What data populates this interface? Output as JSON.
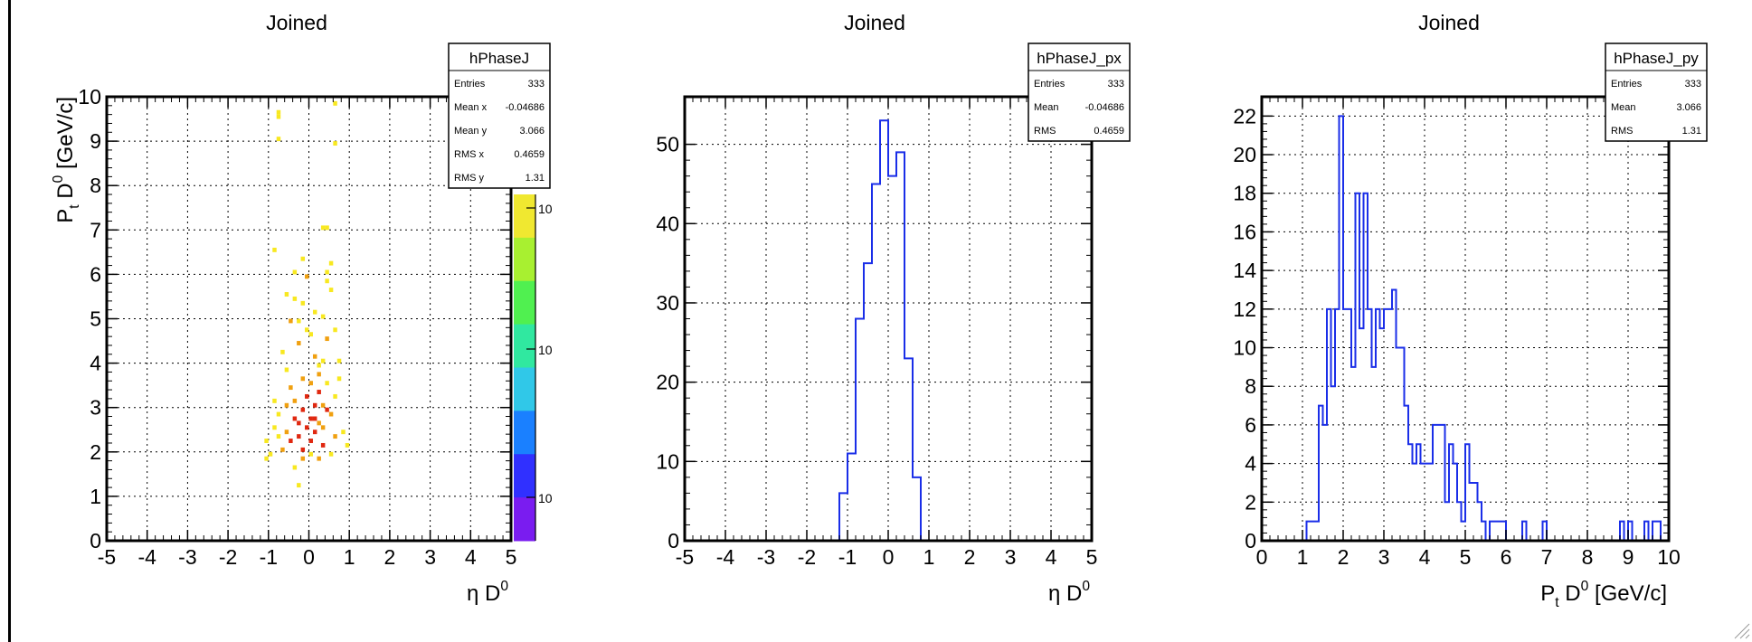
{
  "chart_data": [
    {
      "type": "heatmap",
      "title": "Joined",
      "xlabel": {
        "main": "η D",
        "sup": "0"
      },
      "ylabel": {
        "main": "P",
        "sub": "t",
        "mid": " D",
        "sup": "0",
        "rest": " [GeV/c]"
      },
      "xlim": [
        -5,
        5
      ],
      "ylim": [
        0,
        10
      ],
      "x_ticks": [
        -5,
        -4,
        -3,
        -2,
        -1,
        0,
        1,
        2,
        3,
        4,
        5
      ],
      "y_ticks": [
        0,
        1,
        2,
        3,
        4,
        5,
        6,
        7,
        8,
        9,
        10
      ],
      "grid": true,
      "colorbar_labels": [
        "10",
        "10",
        "10"
      ],
      "stats": {
        "name": "hPhaseJ",
        "rows": [
          {
            "label": "Entries",
            "value": "333"
          },
          {
            "label": "Mean x",
            "value": "-0.04686"
          },
          {
            "label": "Mean y",
            "value": "3.066"
          },
          {
            "label": "RMS x",
            "value": "0.4659"
          },
          {
            "label": "RMS y",
            "value": "1.31"
          }
        ]
      },
      "cell_width": 0.1,
      "cell_height": 0.1,
      "colors": {
        "low": "#f8e820",
        "mid": "#f0a010",
        "high": "#e02810"
      },
      "cells": [
        [
          -1.1,
          1.8,
          "low"
        ],
        [
          -1.0,
          1.9,
          "low"
        ],
        [
          -1.1,
          2.2,
          "low"
        ],
        [
          -0.9,
          2.5,
          "low"
        ],
        [
          -0.8,
          2.8,
          "low"
        ],
        [
          -0.9,
          3.1,
          "low"
        ],
        [
          -0.7,
          2.0,
          "mid"
        ],
        [
          -0.6,
          2.4,
          "mid"
        ],
        [
          -0.5,
          3.4,
          "mid"
        ],
        [
          -0.6,
          3.8,
          "low"
        ],
        [
          -0.7,
          4.2,
          "low"
        ],
        [
          -0.5,
          4.9,
          "mid"
        ],
        [
          -0.6,
          5.5,
          "low"
        ],
        [
          -0.4,
          6.0,
          "low"
        ],
        [
          -0.9,
          6.5,
          "low"
        ],
        [
          -0.4,
          1.6,
          "low"
        ],
        [
          -0.3,
          1.2,
          "low"
        ],
        [
          -0.2,
          2.0,
          "high"
        ],
        [
          -0.3,
          2.6,
          "high"
        ],
        [
          -0.2,
          2.9,
          "high"
        ],
        [
          -0.4,
          3.1,
          "mid"
        ],
        [
          -0.1,
          3.2,
          "high"
        ],
        [
          -0.2,
          3.6,
          "mid"
        ],
        [
          -0.3,
          4.4,
          "mid"
        ],
        [
          -0.1,
          4.7,
          "low"
        ],
        [
          -0.2,
          5.3,
          "low"
        ],
        [
          -0.1,
          5.9,
          "mid"
        ],
        [
          0.0,
          2.2,
          "high"
        ],
        [
          0.1,
          2.4,
          "high"
        ],
        [
          0.0,
          2.7,
          "high"
        ],
        [
          0.1,
          3.0,
          "high"
        ],
        [
          0.0,
          3.5,
          "mid"
        ],
        [
          0.2,
          3.9,
          "low"
        ],
        [
          0.1,
          4.1,
          "mid"
        ],
        [
          0.0,
          4.6,
          "low"
        ],
        [
          0.1,
          5.1,
          "low"
        ],
        [
          0.2,
          1.8,
          "mid"
        ],
        [
          0.3,
          2.1,
          "high"
        ],
        [
          0.2,
          2.6,
          "mid"
        ],
        [
          0.3,
          3.0,
          "mid"
        ],
        [
          0.2,
          3.3,
          "high"
        ],
        [
          0.4,
          3.5,
          "low"
        ],
        [
          0.3,
          4.0,
          "low"
        ],
        [
          0.4,
          4.5,
          "mid"
        ],
        [
          0.3,
          5.0,
          "low"
        ],
        [
          0.5,
          5.6,
          "low"
        ],
        [
          0.4,
          6.0,
          "low"
        ],
        [
          0.5,
          1.9,
          "low"
        ],
        [
          0.6,
          2.3,
          "mid"
        ],
        [
          0.5,
          2.8,
          "mid"
        ],
        [
          0.6,
          3.2,
          "low"
        ],
        [
          0.7,
          3.6,
          "low"
        ],
        [
          0.8,
          2.4,
          "low"
        ],
        [
          0.9,
          2.1,
          "low"
        ],
        [
          0.7,
          4.0,
          "low"
        ],
        [
          -0.8,
          2.3,
          "low"
        ],
        [
          -0.5,
          2.2,
          "high"
        ],
        [
          -0.3,
          2.3,
          "high"
        ],
        [
          -0.1,
          2.5,
          "high"
        ],
        [
          0.1,
          2.7,
          "high"
        ],
        [
          0.3,
          2.5,
          "mid"
        ],
        [
          -0.2,
          1.8,
          "mid"
        ],
        [
          0.0,
          1.9,
          "low"
        ],
        [
          0.4,
          2.9,
          "high"
        ],
        [
          -0.6,
          3.0,
          "mid"
        ],
        [
          -0.4,
          2.7,
          "high"
        ],
        [
          0.2,
          3.7,
          "mid"
        ],
        [
          -0.3,
          4.9,
          "low"
        ],
        [
          0.6,
          4.7,
          "low"
        ],
        [
          -0.4,
          5.4,
          "low"
        ],
        [
          0.4,
          5.8,
          "low"
        ],
        [
          0.5,
          6.2,
          "low"
        ],
        [
          -0.2,
          6.3,
          "low"
        ],
        [
          0.3,
          7.0,
          "low"
        ],
        [
          0.4,
          7.0,
          "low"
        ],
        [
          -0.8,
          9.6,
          "low"
        ],
        [
          -0.8,
          9.5,
          "low"
        ],
        [
          -0.8,
          9.0,
          "low"
        ],
        [
          0.6,
          9.8,
          "low"
        ],
        [
          0.6,
          8.9,
          "low"
        ]
      ]
    },
    {
      "type": "bar",
      "title": "Joined",
      "xlabel": {
        "main": "η D",
        "sup": "0"
      },
      "xlim": [
        -5,
        5
      ],
      "ylim": [
        0,
        56
      ],
      "x_ticks": [
        -5,
        -4,
        -3,
        -2,
        -1,
        0,
        1,
        2,
        3,
        4,
        5
      ],
      "y_ticks": [
        0,
        10,
        20,
        30,
        40,
        50
      ],
      "grid": true,
      "stats": {
        "name": "hPhaseJ_px",
        "rows": [
          {
            "label": "Entries",
            "value": "333"
          },
          {
            "label": "Mean",
            "value": "-0.04686"
          },
          {
            "label": "RMS",
            "value": "0.4659"
          }
        ]
      },
      "bin_width": 0.2,
      "bins": [
        [
          -1.2,
          6
        ],
        [
          -1.0,
          11
        ],
        [
          -0.8,
          28
        ],
        [
          -0.6,
          35
        ],
        [
          -0.4,
          45
        ],
        [
          -0.2,
          53
        ],
        [
          0.0,
          46
        ],
        [
          0.2,
          49
        ],
        [
          0.4,
          23
        ],
        [
          0.6,
          8
        ]
      ]
    },
    {
      "type": "bar",
      "title": "Joined",
      "xlabel": {
        "main": "P",
        "sub": "t",
        "mid": " D",
        "sup": "0",
        "rest": " [GeV/c]"
      },
      "xlim": [
        0,
        10
      ],
      "ylim": [
        0,
        23
      ],
      "x_ticks": [
        0,
        1,
        2,
        3,
        4,
        5,
        6,
        7,
        8,
        9,
        10
      ],
      "y_ticks": [
        0,
        2,
        4,
        6,
        8,
        10,
        12,
        14,
        16,
        18,
        20,
        22
      ],
      "grid": true,
      "stats": {
        "name": "hPhaseJ_py",
        "rows": [
          {
            "label": "Entries",
            "value": "333"
          },
          {
            "label": "Mean",
            "value": "3.066"
          },
          {
            "label": "RMS",
            "value": "1.31"
          }
        ]
      },
      "bin_width": 0.1,
      "bins": [
        [
          1.1,
          1
        ],
        [
          1.2,
          1
        ],
        [
          1.3,
          1
        ],
        [
          1.4,
          7
        ],
        [
          1.5,
          6
        ],
        [
          1.6,
          12
        ],
        [
          1.7,
          8
        ],
        [
          1.8,
          12
        ],
        [
          1.9,
          22
        ],
        [
          2.0,
          12
        ],
        [
          2.1,
          12
        ],
        [
          2.2,
          9
        ],
        [
          2.3,
          18
        ],
        [
          2.4,
          11
        ],
        [
          2.5,
          18
        ],
        [
          2.6,
          12
        ],
        [
          2.7,
          9
        ],
        [
          2.8,
          12
        ],
        [
          2.9,
          11
        ],
        [
          3.0,
          12
        ],
        [
          3.1,
          12
        ],
        [
          3.2,
          13
        ],
        [
          3.3,
          10
        ],
        [
          3.4,
          10
        ],
        [
          3.5,
          7
        ],
        [
          3.6,
          5
        ],
        [
          3.7,
          4
        ],
        [
          3.8,
          5
        ],
        [
          3.9,
          4
        ],
        [
          4.0,
          4
        ],
        [
          4.1,
          4
        ],
        [
          4.2,
          6
        ],
        [
          4.3,
          6
        ],
        [
          4.4,
          6
        ],
        [
          4.5,
          2
        ],
        [
          4.6,
          5
        ],
        [
          4.7,
          4
        ],
        [
          4.8,
          2
        ],
        [
          4.9,
          1
        ],
        [
          5.0,
          5
        ],
        [
          5.1,
          3
        ],
        [
          5.2,
          3
        ],
        [
          5.3,
          2
        ],
        [
          5.4,
          1
        ],
        [
          5.5,
          0
        ],
        [
          5.6,
          1
        ],
        [
          5.7,
          1
        ],
        [
          5.8,
          1
        ],
        [
          5.9,
          1
        ],
        [
          6.0,
          0
        ],
        [
          6.2,
          0
        ],
        [
          6.4,
          1
        ],
        [
          6.5,
          0
        ],
        [
          6.9,
          1
        ],
        [
          7.0,
          0
        ],
        [
          8.8,
          1
        ],
        [
          8.9,
          0
        ],
        [
          9.0,
          1
        ],
        [
          9.1,
          0
        ],
        [
          9.4,
          1
        ],
        [
          9.5,
          0
        ],
        [
          9.6,
          1
        ],
        [
          9.7,
          1
        ]
      ]
    }
  ]
}
